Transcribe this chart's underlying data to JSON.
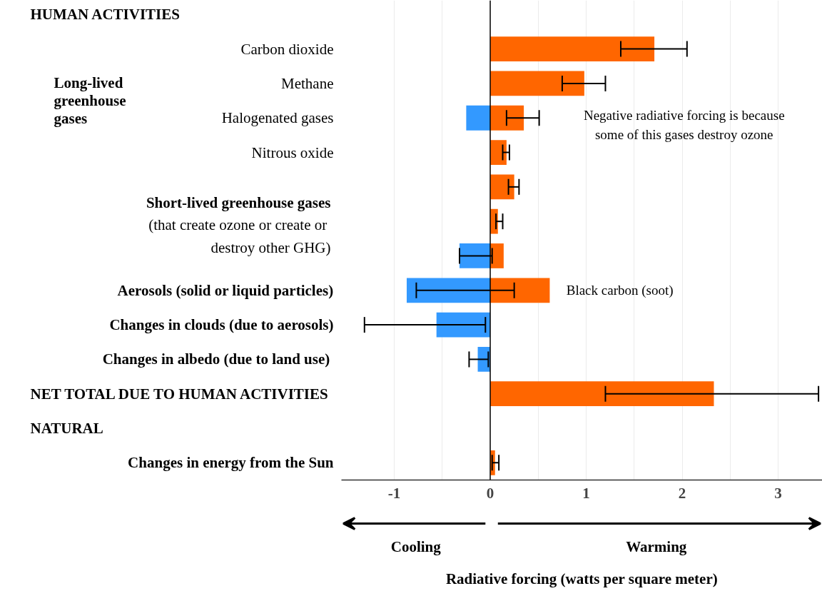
{
  "chart_data": {
    "type": "bar",
    "orientation": "horizontal",
    "xlabel": "Radiative forcing (watts per square meter)",
    "categories": [
      "Carbon dioxide",
      "Methane",
      "Halogenated gases",
      "Nitrous oxide",
      null,
      null,
      null,
      "Aerosols (solid or liquid particles)",
      "Changes in clouds (due to aerosols)",
      "Changes  in albedo (due to land use)",
      "NET  TOTAL DUE TO HUMAN ACTIVITIES",
      null,
      "Changes in energy from the Sun"
    ],
    "series": [
      {
        "color": "#ff6600",
        "values": [
          1.71,
          0.98,
          0.35,
          0.17,
          0.25,
          0.08,
          0.14,
          0.62,
          null,
          null,
          2.33,
          null,
          0.05
        ],
        "errors": [
          [
            1.36,
            2.05
          ],
          [
            0.75,
            1.2
          ],
          [
            0.17,
            0.51
          ],
          [
            0.13,
            0.2
          ],
          [
            0.19,
            0.3
          ],
          [
            0.06,
            0.13
          ],
          null,
          null,
          null,
          null,
          [
            1.2,
            3.42
          ],
          null,
          [
            0.02,
            0.09
          ]
        ]
      },
      {
        "color": "#3399ff",
        "values": [
          null,
          null,
          -0.25,
          null,
          null,
          null,
          -0.32,
          -0.87,
          -0.56,
          -0.13,
          null,
          null,
          null
        ],
        "errors": [
          null,
          null,
          null,
          null,
          null,
          null,
          [
            -0.32,
            0.02
          ],
          [
            -0.77,
            0.25
          ],
          [
            -1.31,
            -0.05
          ],
          [
            -0.22,
            -0.02
          ],
          null,
          null,
          null
        ]
      }
    ],
    "xlim": [
      -1.55,
      3.46
    ],
    "xticks": [
      -1,
      {
        "value": -0.5,
        "label": null
      },
      0,
      {
        "value": 0.5,
        "label": null
      },
      1,
      {
        "value": 1.5,
        "label": null
      },
      2,
      {
        "value": 2.5,
        "label": null
      },
      3
    ],
    "grid": "x",
    "ref_lines": [
      {
        "axis": "x",
        "value": 0,
        "color": "#000000"
      }
    ],
    "annotations": [
      "HUMAN ACTIVITIES",
      "Long-lived\ngreenhouse\ngases",
      "Short-lived greenhouse gases\n(that create ozone or  create or\ndestroy other GHG)",
      "NATURAL",
      "Cooling",
      "Warming",
      "Negative radiative forcing is because\nsome of this gases destroy ozone",
      "Black carbon (soot)"
    ]
  }
}
